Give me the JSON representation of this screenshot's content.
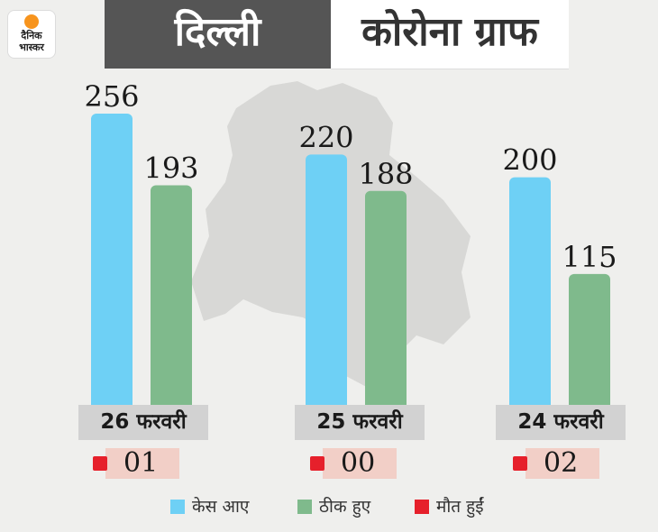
{
  "header": {
    "logo_line1": "दैनिक",
    "logo_line2": "भास्कर",
    "title": "दिल्ली",
    "subtitle": "कोरोना ग्राफ"
  },
  "chart_data": {
    "type": "bar",
    "title": "दिल्ली कोरोना ग्राफ",
    "categories": [
      "26 फरवरी",
      "25 फरवरी",
      "24 फरवरी"
    ],
    "series": [
      {
        "name": "केस आए",
        "color": "#6ed0f5",
        "values": [
          256,
          220,
          200
        ]
      },
      {
        "name": "ठीक हुए",
        "color": "#7fba8c",
        "values": [
          193,
          188,
          115
        ]
      },
      {
        "name": "मौत हुईं",
        "color": "#e6202b",
        "values": [
          1,
          0,
          2
        ]
      }
    ],
    "data_labels": [
      [
        "256",
        "193"
      ],
      [
        "220",
        "188"
      ],
      [
        "200",
        "115"
      ]
    ],
    "death_labels": [
      "01",
      "00",
      "02"
    ],
    "ylim": [
      0,
      256
    ],
    "grid": false,
    "legend_position": "bottom-center"
  }
}
